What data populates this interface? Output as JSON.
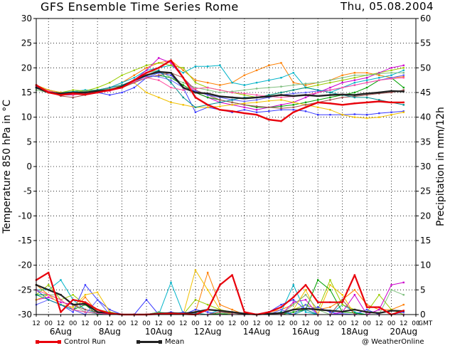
{
  "header": {
    "title": "GFS Ensemble Time Series Rome",
    "date": "Thu, 05.08.2004"
  },
  "footer": {
    "control_label": "Control Run",
    "mean_label": "Mean",
    "credit": "@ WeatherOnline"
  },
  "colors": {
    "control": "#e8000b",
    "mean": "#222222",
    "grid": "#000000",
    "members": [
      "#ff7f00",
      "#00b3c8",
      "#99cc00",
      "#3a3aff",
      "#cc00cc",
      "#00a000",
      "#f0c000",
      "#7fbf7f",
      "#a05050",
      "#6060ff",
      "#009090",
      "#ff4fa0"
    ]
  },
  "chart_data": {
    "type": "line",
    "ylabel_left": "Temperature 850 hPa in °C",
    "ylabel_right": "Precipitation in mm/12h",
    "xlabel_suffix": "GMT",
    "ylim_left": [
      -30,
      30
    ],
    "ylim_right": [
      0,
      60
    ],
    "grid": true,
    "yticks_left": [
      30,
      25,
      20,
      15,
      10,
      5,
      0,
      -5,
      -10,
      -15,
      -20,
      -25,
      -30
    ],
    "yticks_right": [
      60,
      55,
      50,
      45,
      40,
      35,
      30,
      25,
      20,
      15,
      10,
      5,
      0
    ],
    "xticks": [
      "12",
      "00",
      "12",
      "00",
      "12",
      "00",
      "12",
      "00",
      "12",
      "00",
      "12",
      "00",
      "12",
      "00",
      "12",
      "00",
      "12",
      "00",
      "12",
      "00",
      "12",
      "00",
      "12",
      "00",
      "12",
      "00",
      "12",
      "00",
      "12",
      "00",
      "12",
      "00"
    ],
    "date_labels": [
      {
        "i": 2,
        "label": "6Aug"
      },
      {
        "i": 6,
        "label": "8Aug"
      },
      {
        "i": 10,
        "label": "10Aug"
      },
      {
        "i": 14,
        "label": "12Aug"
      },
      {
        "i": 18,
        "label": "14Aug"
      },
      {
        "i": 22,
        "label": "16Aug"
      },
      {
        "i": 26,
        "label": "18Aug"
      },
      {
        "i": 30,
        "label": "20Aug"
      }
    ],
    "temperature": {
      "control": [
        16.5,
        15,
        14.5,
        14.8,
        14.6,
        15,
        15.5,
        16,
        17.5,
        19,
        20,
        21.5,
        18,
        14,
        12.5,
        11.5,
        11.2,
        10.8,
        10.5,
        9.5,
        9.2,
        11,
        12,
        13,
        12.8,
        12.5,
        12.8,
        13,
        13.2,
        13,
        13
      ],
      "mean": [
        16,
        15,
        14.8,
        15,
        15,
        15.3,
        15.5,
        16.2,
        17.5,
        18.5,
        19.2,
        19,
        16,
        15,
        14.8,
        14.2,
        14,
        13.8,
        14,
        14.2,
        14.5,
        14.3,
        14.5,
        14.3,
        14.5,
        14.6,
        14.5,
        14.8,
        15,
        15.3,
        15.2
      ],
      "members": [
        [
          16.5,
          15.5,
          14.5,
          15,
          15,
          15.5,
          16,
          17,
          18.5,
          20,
          21,
          21.5,
          19.5,
          17.5,
          17,
          16.5,
          17,
          18.5,
          19.5,
          20.5,
          21,
          17,
          16.5,
          17,
          17.5,
          18.5,
          19,
          19,
          18.5,
          18,
          18.2
        ],
        [
          16,
          15,
          15,
          15.2,
          15.5,
          15.5,
          16,
          17,
          18,
          19.5,
          20,
          20.5,
          19,
          20.3,
          20.3,
          20.5,
          17,
          16.5,
          17,
          17.5,
          18,
          19,
          16,
          15.5,
          15,
          16,
          17,
          17.5,
          18,
          18.5,
          19.5
        ],
        [
          16,
          15.5,
          15,
          15.5,
          15.3,
          16,
          17,
          18.5,
          19.5,
          20.5,
          21,
          20.5,
          20,
          17,
          16,
          15.5,
          15,
          14.5,
          14,
          14.5,
          15,
          15.5,
          16,
          16.5,
          17,
          17.5,
          18,
          18.5,
          19,
          19.5,
          20
        ],
        [
          16.5,
          15.5,
          15,
          14.8,
          15,
          15,
          14.5,
          15,
          16,
          18,
          19,
          18.5,
          16,
          11,
          12,
          11.5,
          11,
          11.5,
          11,
          11.2,
          11.5,
          11.5,
          11.2,
          10.5,
          10.5,
          10.5,
          10.6,
          10.5,
          10.8,
          11,
          11.2
        ],
        [
          16,
          15.3,
          14.5,
          14.5,
          15,
          15.5,
          16,
          16.5,
          17.5,
          19.5,
          22,
          21,
          18,
          15,
          14,
          13,
          12.5,
          12,
          11.5,
          12,
          12.5,
          13,
          14,
          15,
          16,
          17,
          17.5,
          18,
          19,
          20,
          20.5
        ],
        [
          16,
          15,
          14.8,
          15,
          15.3,
          15.5,
          15.5,
          16,
          17,
          18,
          18.5,
          18,
          16.5,
          15,
          14,
          13.5,
          13,
          12.5,
          12,
          12,
          12.2,
          12.5,
          13,
          13.5,
          14,
          14.5,
          15,
          16,
          17.5,
          18,
          16
        ],
        [
          16.5,
          15.5,
          15,
          14.5,
          15,
          15.3,
          15.5,
          16.5,
          17,
          15,
          14,
          13,
          12.5,
          12,
          12,
          12.2,
          12.5,
          12.8,
          13,
          13.3,
          13.5,
          13,
          12.5,
          12,
          11.5,
          10.5,
          10,
          9.8,
          10,
          10.5,
          11
        ],
        [
          15.5,
          15,
          14.5,
          15,
          15.3,
          15.5,
          15.8,
          16,
          17.5,
          19,
          19.5,
          18,
          17,
          16,
          15.5,
          15,
          15.2,
          15.5,
          15.8,
          16,
          16.2,
          16.5,
          16.8,
          17,
          17.5,
          18,
          18.5,
          18.5,
          18.8,
          19,
          19
        ],
        [
          16,
          15.2,
          14.3,
          14,
          14.5,
          15,
          15.5,
          16,
          17,
          18,
          18.5,
          19,
          18,
          15.5,
          14.5,
          13.5,
          13,
          12.5,
          12.2,
          12,
          11.8,
          12,
          12.5,
          13,
          13.5,
          14,
          14.2,
          14.5,
          14.8,
          15,
          15.5
        ],
        [
          16.2,
          15.2,
          14.5,
          14.5,
          15,
          15.2,
          15.5,
          16.3,
          17.2,
          18.3,
          18.2,
          17.5,
          16,
          15.3,
          14.5,
          14,
          13.5,
          13.2,
          13.5,
          14,
          14.5,
          14.8,
          15,
          15.3,
          15.5,
          16,
          16.5,
          17,
          17.5,
          18,
          18.5
        ],
        [
          16,
          15,
          14.5,
          14.8,
          15,
          15.5,
          16,
          16.5,
          17.5,
          18.5,
          19.5,
          17,
          14,
          12,
          12.5,
          13,
          13.5,
          14,
          14,
          14.5,
          15,
          15.5,
          16,
          15.5,
          15,
          14.5,
          14,
          14,
          13.5,
          13,
          12.5
        ],
        [
          16.3,
          15.3,
          14.8,
          14.5,
          14.8,
          15,
          15.3,
          16,
          17.2,
          18,
          17.5,
          16,
          15.5,
          15.8,
          16,
          15.5,
          15,
          14.8,
          14.5,
          14.2,
          14,
          14.2,
          14.5,
          15,
          15.5,
          16,
          16.5,
          17,
          17.5,
          17.8,
          18
        ]
      ]
    },
    "precipitation": {
      "control": [
        7,
        8.5,
        0.5,
        3,
        2.5,
        1,
        0.2,
        0,
        0,
        0,
        0.1,
        0.2,
        0.1,
        0,
        1,
        6,
        8,
        0.5,
        0,
        0.5,
        1.5,
        3.5,
        6,
        2.5,
        2.5,
        2.5,
        8,
        1.5,
        1.5,
        0,
        0.8
      ],
      "mean": [
        6,
        5,
        4,
        2,
        2.2,
        0.5,
        0.3,
        0,
        0,
        0,
        0.2,
        0.3,
        0.2,
        0.5,
        1,
        0.8,
        0.5,
        0.2,
        0,
        0.2,
        0.3,
        1,
        1.2,
        1,
        0.8,
        0.6,
        1,
        0.5,
        0.3,
        0.8,
        0.7
      ],
      "members": [
        [
          6,
          4,
          3,
          1,
          3.5,
          0.5,
          0,
          0,
          0,
          0,
          0.3,
          0.1,
          0,
          0.5,
          8.5,
          2,
          1,
          0,
          0,
          0.5,
          1,
          2,
          4,
          1,
          1.5,
          3,
          5,
          2,
          1,
          1,
          2
        ],
        [
          5,
          5,
          7,
          3,
          1,
          0.3,
          0,
          0,
          0,
          0,
          0,
          6.5,
          0.2,
          0,
          0,
          1,
          0,
          0,
          0,
          0,
          0.5,
          6,
          0.5,
          0,
          0,
          2,
          0.5,
          0,
          0,
          0,
          0
        ],
        [
          4,
          6,
          3,
          4,
          2,
          1,
          0.5,
          0,
          0,
          0,
          0,
          0,
          0,
          3,
          2,
          1,
          0.5,
          0,
          0,
          0,
          0,
          1,
          2,
          1,
          7,
          2,
          1,
          0.5,
          4,
          1,
          0
        ],
        [
          5,
          3,
          2,
          0.5,
          6,
          3,
          1,
          0,
          0,
          3,
          0,
          0.5,
          0,
          1,
          0.5,
          0,
          0,
          0,
          0,
          0.5,
          2,
          3,
          1,
          1.5,
          0.5,
          0,
          0,
          1,
          0,
          0,
          0.5
        ],
        [
          3,
          3.5,
          2.5,
          2,
          2,
          0.5,
          0,
          0,
          0,
          0,
          0.5,
          0,
          0,
          0,
          0,
          0.5,
          0,
          0,
          0,
          0,
          0,
          2.5,
          3,
          0,
          0,
          0.5,
          4,
          0,
          1,
          6,
          6.5
        ],
        [
          4,
          4,
          3,
          1,
          2,
          0,
          0,
          0,
          0,
          0,
          0.5,
          0,
          0,
          0,
          0,
          0.2,
          0,
          0,
          0,
          0,
          0,
          0.5,
          1,
          7,
          5,
          0.5,
          0.3,
          0,
          0,
          0,
          0
        ],
        [
          3,
          4,
          2,
          1.5,
          4,
          4.5,
          0.5,
          0,
          0,
          0,
          0,
          0,
          0,
          9,
          5,
          1,
          0,
          0,
          0,
          0,
          0,
          1,
          5,
          0,
          6,
          4,
          0,
          0,
          0,
          0,
          0
        ],
        [
          5,
          4,
          4,
          2,
          0.5,
          0.2,
          0,
          0,
          0,
          0,
          0.5,
          0.2,
          0,
          0,
          0,
          0.5,
          0,
          0,
          0,
          0,
          0,
          2,
          4,
          1,
          0,
          0,
          0,
          0,
          0,
          5,
          4
        ],
        [
          6,
          5,
          4,
          2,
          1,
          0.5,
          0.2,
          0,
          0,
          0,
          0,
          0,
          0,
          0,
          0,
          0.5,
          0.3,
          0,
          0,
          0,
          0,
          1,
          1,
          0,
          0,
          3,
          0,
          0,
          0,
          0,
          0
        ],
        [
          2,
          3,
          2,
          1,
          0,
          3,
          0,
          0,
          0,
          0,
          0,
          0,
          0.5,
          0,
          0,
          0,
          0,
          0,
          0,
          0,
          1,
          0,
          2,
          0,
          0,
          0.2,
          0,
          0,
          0,
          0,
          0
        ],
        [
          4,
          3,
          2,
          1,
          0.5,
          0.2,
          0,
          0,
          0,
          0,
          0,
          0,
          0,
          0.3,
          0,
          0,
          0,
          0,
          0,
          0,
          0.5,
          0,
          1,
          0,
          0,
          0,
          0,
          0,
          0,
          0,
          0
        ],
        [
          5,
          4,
          3,
          1,
          0.5,
          0.3,
          0,
          0,
          0,
          0,
          0.2,
          0.3,
          0.1,
          0,
          0,
          0,
          0,
          0,
          0,
          0.2,
          0,
          0,
          0,
          0,
          0,
          0,
          0,
          0,
          0,
          0,
          0
        ]
      ]
    }
  }
}
